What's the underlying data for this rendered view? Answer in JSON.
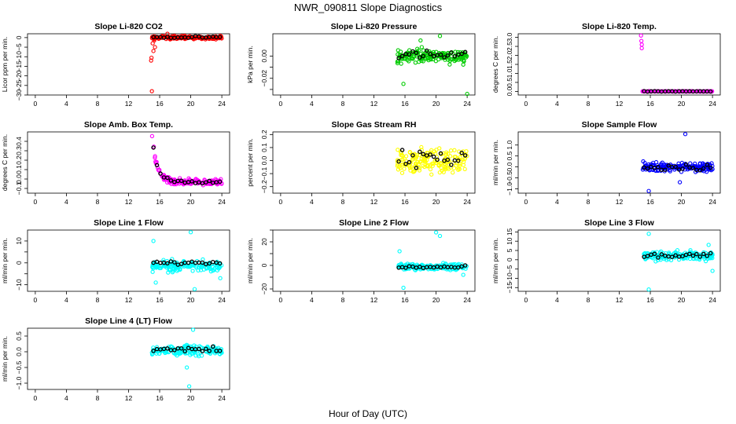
{
  "figure": {
    "title": "NWR_090811  Slope Diagnostics",
    "xlabel": "Hour of Day (UTC)"
  },
  "chart_data": [
    {
      "type": "scatter",
      "title": "Slope Li-820 CO2",
      "ylabel": "Licor ppm per min.",
      "color": "#ff0000",
      "xlim": [
        -1,
        25
      ],
      "ylim": [
        -30,
        2
      ],
      "xticks": [
        0,
        4,
        8,
        12,
        16,
        20,
        24
      ],
      "xtick_labels": [
        "0",
        "4",
        "8",
        "12",
        "16",
        "20",
        "24"
      ],
      "yticks": [
        0,
        -5,
        -10,
        -15,
        -20,
        -25,
        -30
      ],
      "ytick_labels": [
        "0",
        "−5",
        "−10",
        "−15",
        "−20",
        "−25",
        "−30"
      ],
      "x_range": [
        15,
        24
      ],
      "center": 0,
      "spread": 0.8,
      "outliers": [
        [
          14.9,
          -12
        ],
        [
          15.0,
          -28
        ],
        [
          14.95,
          -10.5
        ],
        [
          15.2,
          -7
        ],
        [
          15.4,
          -5
        ],
        [
          15.1,
          -3
        ],
        [
          15.3,
          -1.5
        ],
        [
          17,
          2
        ]
      ],
      "black_center": 0.2,
      "black_spread": 0.4
    },
    {
      "type": "scatter",
      "title": "Slope Li-820 Pressure",
      "ylabel": "kPa per min.",
      "color": "#00cc00",
      "xlim": [
        -1,
        25
      ],
      "ylim": [
        -0.035,
        0.02
      ],
      "xticks": [
        0,
        4,
        8,
        12,
        16,
        20,
        24
      ],
      "xtick_labels": [
        "0",
        "4",
        "8",
        "12",
        "16",
        "20",
        "24"
      ],
      "yticks": [
        0.0,
        -0.01,
        -0.02,
        -0.03
      ],
      "ytick_labels": [
        "0.00",
        "",
        "−0.02",
        ""
      ],
      "x_range": [
        15,
        24
      ],
      "center": 0,
      "spread": 0.006,
      "outliers": [
        [
          15.8,
          -0.025
        ],
        [
          24,
          -0.034
        ],
        [
          20.5,
          0.018
        ],
        [
          18,
          0.014
        ]
      ],
      "black_center": 0.0005,
      "black_spread": 0.004
    },
    {
      "type": "scatter",
      "title": "Slope Li-820 Temp.",
      "ylabel": "degrees C per min.",
      "color": "#ff00ff",
      "xlim": [
        -1,
        25
      ],
      "ylim": [
        -0.2,
        3.2
      ],
      "xticks": [
        0,
        4,
        8,
        12,
        16,
        20,
        24
      ],
      "xtick_labels": [
        "0",
        "4",
        "8",
        "12",
        "16",
        "20",
        "24"
      ],
      "yticks": [
        0,
        0.5,
        1.0,
        1.5,
        2.0,
        2.5,
        3.0
      ],
      "ytick_labels": [
        "0.0",
        "0.5",
        "1.0",
        "1.5",
        "2.0",
        "2.5",
        "3.0"
      ],
      "x_range": [
        15,
        24
      ],
      "center": 0,
      "spread": 0.01,
      "outliers": [
        [
          14.8,
          3.1
        ],
        [
          14.85,
          2.8
        ],
        [
          14.9,
          2.6
        ],
        [
          14.9,
          2.4
        ]
      ],
      "black_center": 0,
      "black_spread": 0.01
    },
    {
      "type": "scatter",
      "title": "Slope Amb. Box Temp.",
      "ylabel": "degrees C per min.",
      "color": "#ff00ff",
      "xlim": [
        -1,
        25
      ],
      "ylim": [
        -0.15,
        0.5
      ],
      "xticks": [
        0,
        4,
        8,
        12,
        16,
        20,
        24
      ],
      "xtick_labels": [
        "0",
        "4",
        "8",
        "12",
        "16",
        "20",
        "24"
      ],
      "yticks": [
        -0.1,
        0,
        0.1,
        0.2,
        0.3,
        0.4
      ],
      "ytick_labels": [
        "−0.1",
        "0.0",
        "0.1",
        "0.2",
        "0.3",
        "0.4"
      ],
      "x_range": [
        15,
        24
      ],
      "center": -0.03,
      "spread": 0.03,
      "decay": true,
      "outliers": [],
      "black_center": -0.03,
      "black_spread": 0.02
    },
    {
      "type": "scatter",
      "title": "Slope Gas Stream RH",
      "ylabel": "percent per min.",
      "color": "#ffff00",
      "xlim": [
        -1,
        25
      ],
      "ylim": [
        -0.25,
        0.22
      ],
      "xticks": [
        0,
        4,
        8,
        12,
        16,
        20,
        24
      ],
      "xtick_labels": [
        "0",
        "4",
        "8",
        "12",
        "16",
        "20",
        "24"
      ],
      "yticks": [
        -0.2,
        -0.1,
        0,
        0.1,
        0.2
      ],
      "ytick_labels": [
        "−0.2",
        "−0.1",
        "0.0",
        "0.1",
        "0.2"
      ],
      "x_range": [
        15,
        24
      ],
      "center": 0,
      "spread": 0.09,
      "outliers": [],
      "black_center": 0.02,
      "black_spread": 0.08
    },
    {
      "type": "scatter",
      "title": "Slope Sample Flow",
      "ylabel": "ml/min per min.",
      "color": "#0000ff",
      "xlim": [
        -1,
        25
      ],
      "ylim": [
        -1.2,
        1.6
      ],
      "xticks": [
        0,
        4,
        8,
        12,
        16,
        20,
        24
      ],
      "xtick_labels": [
        "0",
        "4",
        "8",
        "12",
        "16",
        "20",
        "24"
      ],
      "yticks": [
        -1.0,
        -0.5,
        0,
        0.5,
        1.0
      ],
      "ytick_labels": [
        "−1.0",
        "−0.5",
        "0.0",
        "0.5",
        "1.0"
      ],
      "x_range": [
        15,
        24
      ],
      "center": 0,
      "spread": 0.22,
      "outliers": [
        [
          15.8,
          -1.1
        ],
        [
          20.5,
          1.5
        ],
        [
          19.8,
          -0.7
        ]
      ],
      "black_center": 0,
      "black_spread": 0.15
    },
    {
      "type": "scatter",
      "title": "Slope Line 1 Flow",
      "ylabel": "ml/min per min.",
      "color": "#00ffff",
      "xlim": [
        -1,
        25
      ],
      "ylim": [
        -13,
        15
      ],
      "xticks": [
        0,
        4,
        8,
        12,
        16,
        20,
        24
      ],
      "xtick_labels": [
        "0",
        "4",
        "8",
        "12",
        "16",
        "20",
        "24"
      ],
      "yticks": [
        -10,
        -5,
        0,
        5,
        10
      ],
      "ytick_labels": [
        "−10",
        "",
        "0",
        "",
        "10"
      ],
      "x_range": [
        15,
        24
      ],
      "center": -1.5,
      "spread": 2.2,
      "outliers": [
        [
          15.2,
          10
        ],
        [
          20,
          14
        ],
        [
          20.5,
          -12
        ],
        [
          15.5,
          -9
        ],
        [
          23.8,
          -7
        ]
      ],
      "black_center": 0,
      "black_spread": 0.7
    },
    {
      "type": "scatter",
      "title": "Slope Line 2 Flow",
      "ylabel": "ml/min per min.",
      "color": "#00ffff",
      "xlim": [
        -1,
        25
      ],
      "ylim": [
        -22,
        30
      ],
      "xticks": [
        0,
        4,
        8,
        12,
        16,
        20,
        24
      ],
      "xtick_labels": [
        "0",
        "4",
        "8",
        "12",
        "16",
        "20",
        "24"
      ],
      "yticks": [
        -20,
        -10,
        0,
        10,
        20,
        30
      ],
      "ytick_labels": [
        "−20",
        "",
        "0",
        "",
        "20",
        ""
      ],
      "x_range": [
        15,
        24
      ],
      "center": -1,
      "spread": 2.5,
      "outliers": [
        [
          20,
          28
        ],
        [
          20.5,
          25
        ],
        [
          15.8,
          -19
        ],
        [
          15.3,
          12
        ],
        [
          23.5,
          -8
        ]
      ],
      "black_center": -1.5,
      "black_spread": 1.2
    },
    {
      "type": "scatter",
      "title": "Slope Line 3 Flow",
      "ylabel": "ml/min per min.",
      "color": "#00ffff",
      "xlim": [
        -1,
        25
      ],
      "ylim": [
        -17,
        16
      ],
      "xticks": [
        0,
        4,
        8,
        12,
        16,
        20,
        24
      ],
      "xtick_labels": [
        "0",
        "4",
        "8",
        "12",
        "16",
        "20",
        "24"
      ],
      "yticks": [
        -15,
        -10,
        -5,
        0,
        5,
        10,
        15
      ],
      "ytick_labels": [
        "−15",
        "−10",
        "−5",
        "0",
        "5",
        "10",
        "15"
      ],
      "x_range": [
        15,
        24
      ],
      "center": 2,
      "spread": 2.2,
      "outliers": [
        [
          15.8,
          14
        ],
        [
          15.8,
          -16
        ],
        [
          23.5,
          8
        ],
        [
          24,
          -6
        ]
      ],
      "black_center": 2.5,
      "black_spread": 1.5
    },
    {
      "type": "scatter",
      "title": "Slope Line 4 (LT) Flow",
      "ylabel": "ml/min per min.",
      "color": "#00ffff",
      "xlim": [
        -1,
        25
      ],
      "ylim": [
        -1.2,
        0.75
      ],
      "xticks": [
        0,
        4,
        8,
        12,
        16,
        20,
        24
      ],
      "xtick_labels": [
        "0",
        "4",
        "8",
        "12",
        "16",
        "20",
        "24"
      ],
      "yticks": [
        -1.0,
        -0.5,
        0,
        0.5
      ],
      "ytick_labels": [
        "−1.0",
        "−0.5",
        "0.0",
        "0.5"
      ],
      "x_range": [
        15,
        24
      ],
      "center": 0.05,
      "spread": 0.15,
      "outliers": [
        [
          19.8,
          -1.1
        ],
        [
          20.3,
          0.7
        ],
        [
          19.5,
          -0.5
        ]
      ],
      "black_center": 0.05,
      "black_spread": 0.12
    }
  ]
}
